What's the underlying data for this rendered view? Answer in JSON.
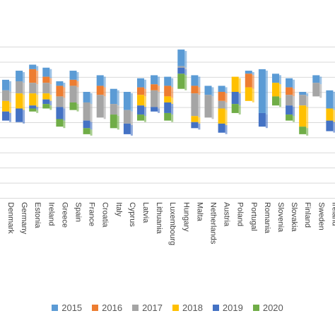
{
  "chart_data": {
    "type": "bar",
    "stacked": true,
    "y_baseline": "offset-per-category",
    "grid": true,
    "legend_position": "bottom",
    "ylim": [
      -3.55,
      2.2
    ],
    "categories": [
      "Denmark",
      "Germany",
      "Estonia",
      "Ireland",
      "Greece",
      "Spain",
      "France",
      "Croatia",
      "Italy",
      "Cyprus",
      "Latvia",
      "Lithuania",
      "Luxembourg",
      "Hungary",
      "Malta",
      "Netherlands",
      "Austria",
      "Poland",
      "Portugal",
      "Romania",
      "Slovenia",
      "Slovakia",
      "Finland",
      "Sweden",
      "Ireland"
    ],
    "series": [
      {
        "name": "2015",
        "color": "#5B9BD5",
        "values": [
          0.35,
          0.35,
          0.15,
          0.3,
          0.15,
          0.3,
          0.35,
          0.35,
          0.5,
          0.6,
          0.3,
          0.3,
          0.3,
          0.55,
          0.35,
          0.3,
          0.2,
          0.0,
          0.1,
          1.45,
          0.3,
          0.3,
          0.1,
          0.25,
          0.6
        ]
      },
      {
        "name": "2016",
        "color": "#ED7D31",
        "values": [
          0.0,
          0.0,
          0.45,
          0.2,
          0.35,
          0.2,
          0.0,
          0.3,
          0.0,
          0.0,
          0.25,
          0.2,
          0.35,
          0.0,
          0.25,
          0.0,
          0.3,
          0.0,
          0.45,
          0.0,
          0.0,
          0.25,
          0.0,
          0.0,
          0.0
        ]
      },
      {
        "name": "2017",
        "color": "#A5A5A5",
        "values": [
          0.35,
          0.4,
          0.35,
          0.35,
          0.35,
          0.55,
          0.6,
          0.75,
          0.35,
          0.45,
          0.0,
          0.55,
          0.0,
          0.05,
          0.75,
          0.75,
          0.25,
          0.0,
          0.0,
          0.0,
          0.0,
          0.35,
          0.35,
          0.45,
          0.0
        ]
      },
      {
        "name": "2018",
        "color": "#FFC000",
        "values": [
          0.35,
          0.5,
          0.4,
          0.2,
          0.0,
          0.0,
          0.0,
          0.0,
          0.0,
          0.0,
          0.35,
          0.0,
          0.2,
          0.0,
          0.2,
          0.0,
          0.5,
          0.5,
          0.45,
          0.0,
          0.45,
          0.0,
          0.7,
          0.0,
          0.4
        ]
      },
      {
        "name": "2019",
        "color": "#4472C4",
        "values": [
          0.3,
          0.45,
          0.1,
          0.15,
          0.4,
          0.0,
          0.25,
          0.0,
          0.0,
          0.35,
          0.3,
          0.15,
          0.35,
          0.2,
          0.2,
          0.0,
          0.3,
          0.4,
          0.0,
          0.45,
          0.0,
          0.3,
          0.0,
          0.0,
          0.35
        ]
      },
      {
        "name": "2020",
        "color": "#70AD47",
        "values": [
          0.0,
          0.0,
          0.1,
          0.15,
          0.25,
          0.25,
          0.2,
          0.0,
          0.45,
          0.0,
          0.2,
          0.0,
          0.25,
          0.5,
          0.0,
          0.0,
          0.0,
          0.3,
          0.0,
          0.0,
          0.3,
          0.2,
          0.25,
          0.0,
          0.0
        ]
      }
    ],
    "offsets": [
      0.45,
      0.75,
      0.95,
      0.85,
      0.4,
      0.75,
      0.05,
      0.6,
      0.15,
      0.05,
      0.5,
      0.6,
      0.55,
      1.45,
      0.6,
      0.25,
      0.25,
      0.55,
      0.75,
      0.8,
      0.65,
      0.5,
      0.05,
      0.6,
      0.1
    ]
  }
}
